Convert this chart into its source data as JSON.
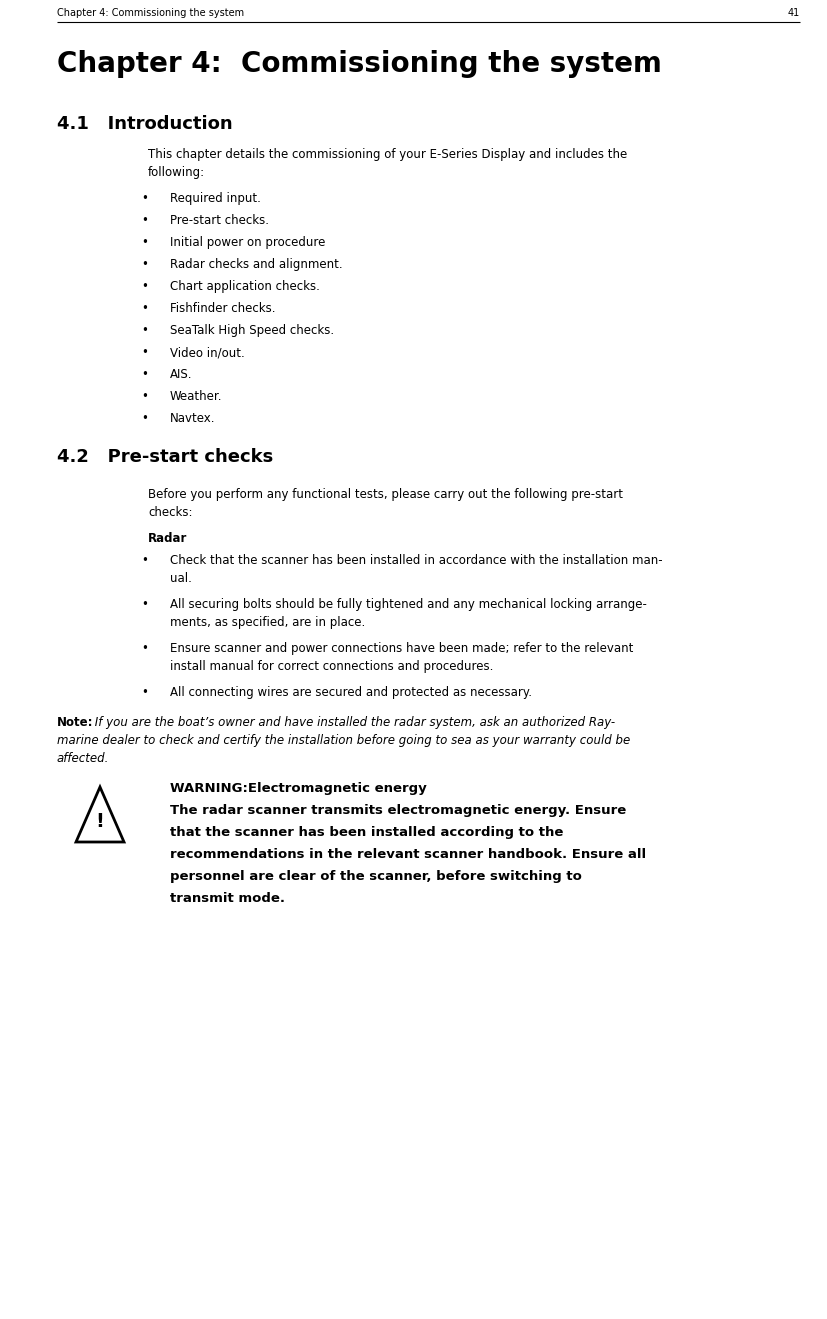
{
  "bg_color": "#ffffff",
  "header_text": "Chapter 4: Commissioning the system",
  "header_page": "41",
  "chapter_title": "Chapter 4:  Commissioning the system",
  "section41_title": "4.1   Introduction",
  "intro_body1": "This chapter details the commissioning of your E-Series Display and includes the",
  "intro_body2": "following:",
  "bullet_items_41": [
    "Required input.",
    "Pre-start checks.",
    "Initial power on procedure",
    "Radar checks and alignment.",
    "Chart application checks.",
    "Fishfinder checks.",
    "SeaTalk High Speed checks.",
    "Video in/out.",
    "AIS.",
    "Weather.",
    "Navtex."
  ],
  "section42_title": "4.2   Pre-start checks",
  "prestart_body1": "Before you perform any functional tests, please carry out the following pre-start",
  "prestart_body2": "checks:",
  "radar_heading": "Radar",
  "radar_bullets": [
    [
      "Check that the scanner has been installed in accordance with the installation man-",
      "ual."
    ],
    [
      "All securing bolts should be fully tightened and any mechanical locking arrange-",
      "ments, as specified, are in place."
    ],
    [
      "Ensure scanner and power connections have been made; refer to the relevant",
      "install manual for correct connections and procedures."
    ],
    [
      "All connecting wires are secured and protected as necessary."
    ]
  ],
  "note_label": "Note:",
  "note_line1": " If you are the boat’s owner and have installed the radar system, ask an authorized Ray-",
  "note_line2": "marine dealer to check and certify the installation before going to sea as your warranty could be",
  "note_line3": "affected.",
  "warning_title": "WARNING:Electromagnetic energy",
  "warning_lines": [
    "The radar scanner transmits electromagnetic energy. Ensure",
    "that the scanner has been installed according to the",
    "recommendations in the relevant scanner handbook. Ensure all",
    "personnel are clear of the scanner, before switching to",
    "transmit mode."
  ],
  "header_fs": 7,
  "chapter_title_fs": 20,
  "section_fs": 13,
  "body_fs": 8.5,
  "warning_fs": 9.5
}
